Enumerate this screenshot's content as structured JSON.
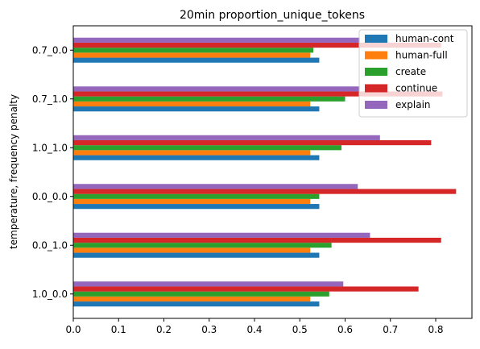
{
  "chart_data": {
    "type": "bar",
    "orientation": "horizontal",
    "title": "20min proportion_unique_tokens",
    "xlabel": "",
    "ylabel": "temperature, frequency penalty",
    "categories": [
      "1.0_0.0",
      "0.0_1.0",
      "0.0_0.0",
      "1.0_1.0",
      "0.7_1.0",
      "0.7_0.0"
    ],
    "xlim": [
      0,
      0.88
    ],
    "xticks": [
      "0.0",
      "0.1",
      "0.2",
      "0.3",
      "0.4",
      "0.5",
      "0.6",
      "0.7",
      "0.8"
    ],
    "grid": false,
    "legend_position": "top-right",
    "series": [
      {
        "name": "human-cont",
        "color": "#1f77b4",
        "values": [
          0.543,
          0.543,
          0.543,
          0.543,
          0.543,
          0.543
        ]
      },
      {
        "name": "human-full",
        "color": "#ff7f0e",
        "values": [
          0.523,
          0.523,
          0.523,
          0.523,
          0.523,
          0.523
        ]
      },
      {
        "name": "create",
        "color": "#2ca02c",
        "values": [
          0.565,
          0.57,
          0.543,
          0.592,
          0.6,
          0.53
        ]
      },
      {
        "name": "continue",
        "color": "#d62728",
        "values": [
          0.762,
          0.812,
          0.845,
          0.79,
          0.815,
          0.812
        ]
      },
      {
        "name": "explain",
        "color": "#9467bd",
        "values": [
          0.596,
          0.655,
          0.628,
          0.677,
          0.633,
          0.633
        ]
      }
    ]
  }
}
